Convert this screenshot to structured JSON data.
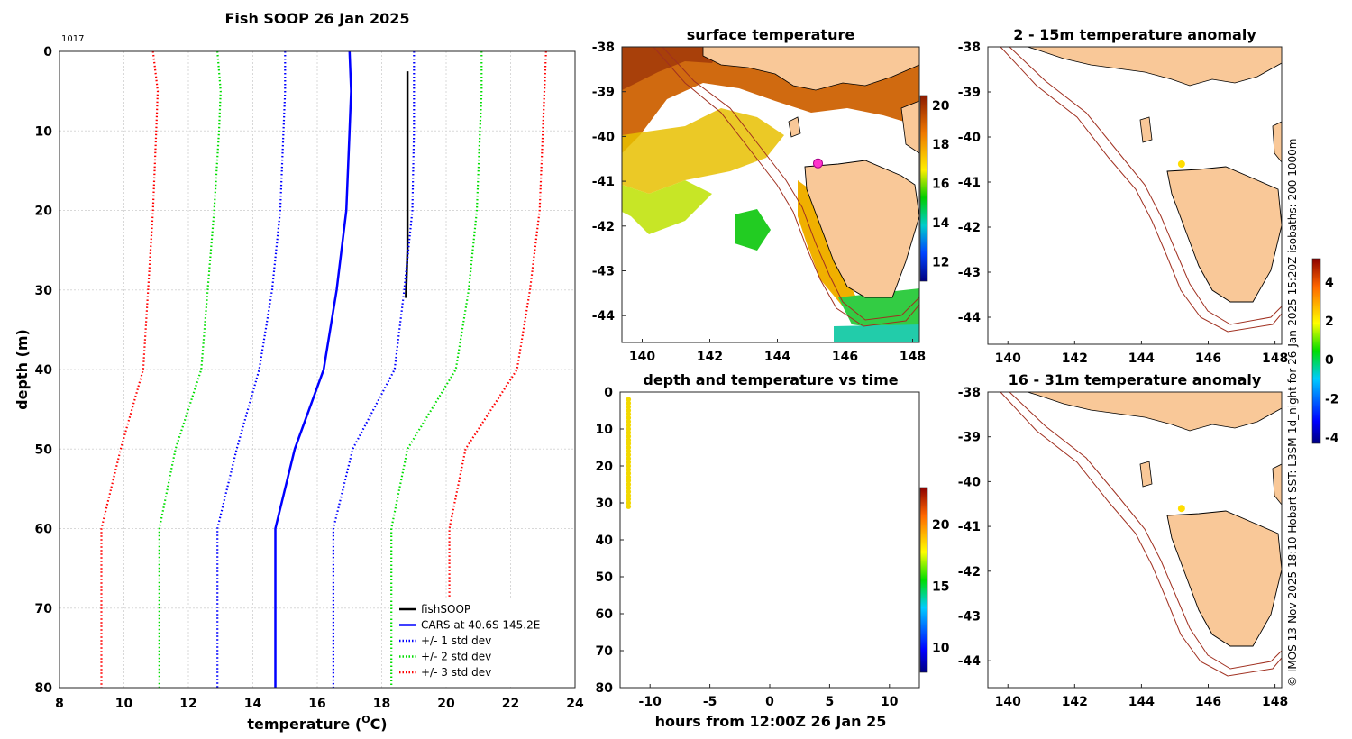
{
  "chart_data": [
    {
      "type": "line",
      "title": "Fish SOOP 26 Jan 2025",
      "id_label": "1017",
      "xlabel": "temperature (",
      "xlabel_unit": "O",
      "xlabel_end": "C)",
      "ylabel": "depth (m)",
      "xlim": [
        8,
        24
      ],
      "ylim": [
        0,
        80
      ],
      "xticks": [
        8,
        10,
        12,
        14,
        16,
        18,
        20,
        22,
        24
      ],
      "yticks": [
        0,
        10,
        20,
        30,
        40,
        50,
        60,
        70,
        80
      ],
      "legend_position": "bottom-right",
      "series": [
        {
          "name": "fishSOOP",
          "color": "#000000",
          "style": "solid",
          "points": [
            [
              18.8,
              2.5
            ],
            [
              18.8,
              10
            ],
            [
              18.8,
              20
            ],
            [
              18.8,
              25
            ],
            [
              18.75,
              31
            ]
          ]
        },
        {
          "name": "CARS at 40.6S 145.2E",
          "color": "#0000ff",
          "style": "solid",
          "points": [
            [
              17.0,
              0
            ],
            [
              17.05,
              5
            ],
            [
              17.0,
              10
            ],
            [
              16.9,
              20
            ],
            [
              16.6,
              30
            ],
            [
              16.2,
              40
            ],
            [
              15.3,
              50
            ],
            [
              14.7,
              60
            ],
            [
              14.7,
              70
            ],
            [
              14.7,
              80
            ]
          ]
        },
        {
          "name": "+/- 1 std dev",
          "color": "#0000ff",
          "style": "dotted",
          "points": [
            [
              15.0,
              0
            ],
            [
              15.0,
              5
            ],
            [
              14.95,
              10
            ],
            [
              14.85,
              20
            ],
            [
              14.6,
              30
            ],
            [
              14.2,
              40
            ],
            [
              13.5,
              50
            ],
            [
              12.9,
              60
            ],
            [
              12.9,
              70
            ],
            [
              12.9,
              80
            ]
          ],
          "points2": [
            [
              19.0,
              0
            ],
            [
              19.0,
              5
            ],
            [
              19.0,
              10
            ],
            [
              18.95,
              20
            ],
            [
              18.7,
              30
            ],
            [
              18.4,
              40
            ],
            [
              17.1,
              50
            ],
            [
              16.5,
              60
            ],
            [
              16.5,
              70
            ],
            [
              16.5,
              80
            ]
          ]
        },
        {
          "name": "+/- 2 std dev",
          "color": "#00dd00",
          "style": "dotted",
          "points": [
            [
              12.9,
              0
            ],
            [
              13.0,
              5
            ],
            [
              12.95,
              10
            ],
            [
              12.8,
              20
            ],
            [
              12.6,
              30
            ],
            [
              12.4,
              40
            ],
            [
              11.6,
              50
            ],
            [
              11.1,
              60
            ],
            [
              11.1,
              70
            ],
            [
              11.1,
              80
            ]
          ],
          "points2": [
            [
              21.1,
              0
            ],
            [
              21.1,
              5
            ],
            [
              21.05,
              10
            ],
            [
              20.95,
              20
            ],
            [
              20.7,
              30
            ],
            [
              20.3,
              40
            ],
            [
              18.8,
              50
            ],
            [
              18.3,
              60
            ],
            [
              18.3,
              70
            ],
            [
              18.3,
              80
            ]
          ]
        },
        {
          "name": "+/- 3 std dev",
          "color": "#ff0000",
          "style": "dotted",
          "points": [
            [
              10.9,
              0
            ],
            [
              11.05,
              5
            ],
            [
              11.0,
              10
            ],
            [
              10.9,
              20
            ],
            [
              10.75,
              30
            ],
            [
              10.6,
              40
            ],
            [
              9.9,
              50
            ],
            [
              9.3,
              60
            ],
            [
              9.3,
              70
            ],
            [
              9.3,
              80
            ]
          ],
          "points2": [
            [
              23.1,
              0
            ],
            [
              23.05,
              5
            ],
            [
              23.0,
              10
            ],
            [
              22.9,
              20
            ],
            [
              22.6,
              30
            ],
            [
              22.2,
              40
            ],
            [
              20.6,
              50
            ],
            [
              20.1,
              60
            ],
            [
              20.1,
              70
            ],
            [
              20.1,
              80
            ]
          ]
        }
      ]
    },
    {
      "type": "heatmap",
      "title": "surface temperature",
      "xlim": [
        139.4,
        148.2
      ],
      "ylim": [
        -44.6,
        -38
      ],
      "xticks": [
        140,
        142,
        144,
        146,
        148
      ],
      "yticks": [
        -38,
        -39,
        -40,
        -41,
        -42,
        -43,
        -44
      ],
      "colorbar_ticks": [
        12,
        14,
        16,
        18,
        20
      ],
      "colorbar_range": [
        11,
        20.5
      ],
      "marker": {
        "lon": 145.2,
        "lat": -40.6,
        "color": "#ff33cc"
      }
    },
    {
      "type": "scatter",
      "title": "depth and temperature vs time",
      "xlabel": "hours from 12:00Z 26 Jan 25",
      "xlim": [
        -12.5,
        12.5
      ],
      "ylim": [
        0,
        80
      ],
      "xticks": [
        -10,
        -5,
        0,
        5,
        10
      ],
      "yticks": [
        0,
        10,
        20,
        30,
        40,
        50,
        60,
        70,
        80
      ],
      "colorbar_ticks": [
        10,
        15,
        20
      ],
      "colorbar_range": [
        8,
        23
      ],
      "points": {
        "hours": -11.8,
        "depth_from": 2,
        "depth_to": 31,
        "step": 1,
        "temperature": 18.8
      }
    },
    {
      "type": "heatmap",
      "title": "2 - 15m temperature anomaly",
      "xlim": [
        139.4,
        148.2
      ],
      "ylim": [
        -44.6,
        -38
      ],
      "xticks": [
        140,
        142,
        144,
        146,
        148
      ],
      "yticks": [
        -38,
        -39,
        -40,
        -41,
        -42,
        -43,
        -44
      ],
      "marker": {
        "lon": 145.2,
        "lat": -40.6,
        "color": "#ffdd00"
      }
    },
    {
      "type": "heatmap",
      "title": "16 - 31m temperature anomaly",
      "xlim": [
        139.4,
        148.2
      ],
      "ylim": [
        -44.6,
        -38
      ],
      "xticks": [
        140,
        142,
        144,
        146,
        148
      ],
      "yticks": [
        -38,
        -39,
        -40,
        -41,
        -42,
        -43,
        -44
      ],
      "marker": {
        "lon": 145.2,
        "lat": -40.6,
        "color": "#ffdd00"
      },
      "colorbar_ticks": [
        -4,
        -2,
        0,
        2,
        4
      ],
      "colorbar_range": [
        -4.3,
        5.2
      ]
    }
  ],
  "footer_note": "© IMOS 13-Nov-2025 18:10 Hobart SST: L3SM-1d_night for 26-Jan-2025 15:20Z isobaths: 200  1000m",
  "colors": {
    "land": "#f9c898",
    "isobath": "#a03020",
    "grid": "#d8d8d8"
  }
}
